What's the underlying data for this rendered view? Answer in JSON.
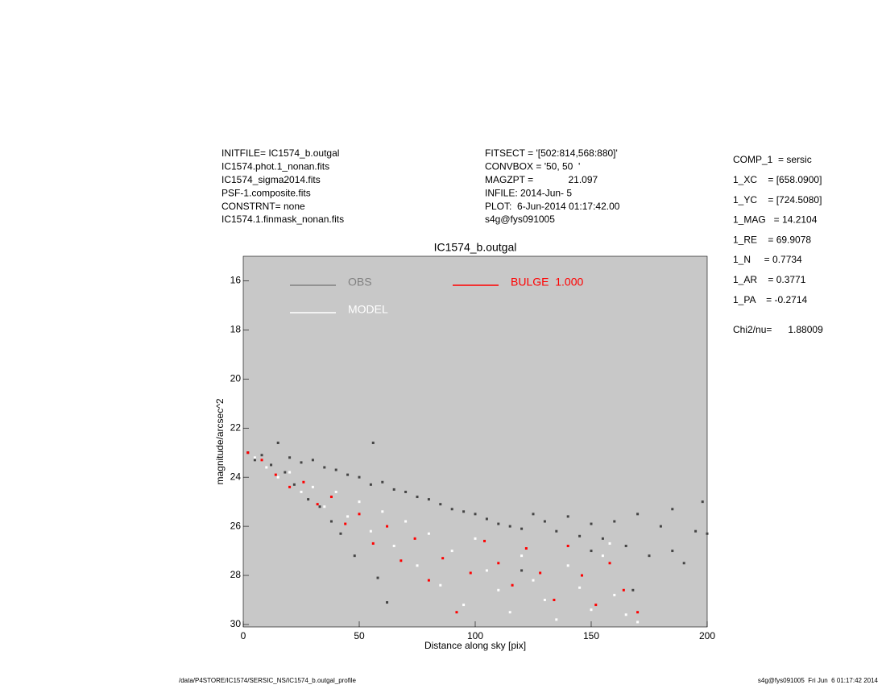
{
  "header_left": [
    "INITFILE= IC1574_b.outgal",
    "IC1574.phot.1_nonan.fits",
    "IC1574_sigma2014.fits",
    "PSF-1.composite.fits",
    "CONSTRNT= none",
    "IC1574.1.finmask_nonan.fits"
  ],
  "header_middle": [
    "FITSECT = '[502:814,568:880]'",
    "CONVBOX = '50, 50  '",
    "MAGZPT =             21.097",
    "INFILE: 2014-Jun- 5",
    "PLOT:  6-Jun-2014 01:17:42.00",
    "s4g@fys091005"
  ],
  "params": [
    "COMP_1  = sersic",
    "1_XC    = [658.0900]",
    "1_YC    = [724.5080]",
    "1_MAG   = 14.2104",
    "1_RE    = 69.9078",
    "1_N     = 0.7734",
    "1_AR    = 0.3771",
    "1_PA    = -0.2714"
  ],
  "chi2": "Chi2/nu=      1.88009",
  "footer_left": "/data/P4STORE/IC1574/SERSIC_NS/IC1574_b.outgal_profile",
  "footer_right": "s4g@fys091005  Fri Jun  6 01:17:42 2014",
  "chart_data": {
    "type": "scatter",
    "title": "IC1574_b.outgal",
    "x_label": "Distance along sky [pix]",
    "y_label": "magnitude/arcsec^2",
    "xlim": [
      0,
      200
    ],
    "xticks": [
      0,
      50,
      100,
      150,
      200
    ],
    "ylim": [
      30.1,
      15
    ],
    "yticks": [
      16,
      18,
      20,
      22,
      24,
      26,
      28,
      30
    ],
    "background": "#c8c8c8",
    "series": [
      {
        "name": "OBS",
        "color": "#444444",
        "legend_color": "#808080",
        "x": [
          2,
          5,
          8,
          12,
          15,
          18,
          20,
          22,
          25,
          28,
          30,
          33,
          35,
          38,
          40,
          42,
          45,
          48,
          50,
          55,
          56,
          58,
          60,
          65,
          70,
          75,
          80,
          85,
          90,
          95,
          100,
          105,
          110,
          115,
          120,
          125,
          130,
          135,
          140,
          145,
          150,
          155,
          160,
          165,
          170,
          175,
          180,
          185,
          190,
          195,
          198,
          168,
          62,
          120,
          150,
          185,
          200
        ],
        "values": [
          23.0,
          23.3,
          23.1,
          23.5,
          22.6,
          23.8,
          23.2,
          24.3,
          23.4,
          24.9,
          23.3,
          25.2,
          23.6,
          25.8,
          23.7,
          26.3,
          23.9,
          27.2,
          24.0,
          24.3,
          22.6,
          28.1,
          24.2,
          24.5,
          24.6,
          24.8,
          24.9,
          25.1,
          25.3,
          25.4,
          25.5,
          25.7,
          25.9,
          26.0,
          26.1,
          25.5,
          25.8,
          26.2,
          25.6,
          26.4,
          25.9,
          26.5,
          25.8,
          26.8,
          25.5,
          27.2,
          26.0,
          25.3,
          27.5,
          26.2,
          25.0,
          28.6,
          29.1,
          27.8,
          27.0,
          27.0,
          26.3
        ]
      },
      {
        "name": "MODEL",
        "color": "#ffffff",
        "legend_color": "#ffffff",
        "x": [
          5,
          10,
          15,
          20,
          25,
          30,
          35,
          40,
          45,
          50,
          55,
          60,
          65,
          70,
          75,
          80,
          85,
          90,
          95,
          100,
          105,
          110,
          115,
          120,
          125,
          130,
          135,
          140,
          145,
          150,
          155,
          160,
          165,
          170,
          158
        ],
        "values": [
          23.2,
          23.6,
          24.0,
          23.8,
          24.6,
          24.4,
          25.2,
          24.6,
          25.6,
          25.0,
          26.2,
          25.4,
          26.8,
          25.8,
          27.6,
          26.3,
          28.4,
          27.0,
          29.2,
          26.5,
          27.8,
          28.6,
          29.5,
          27.2,
          28.2,
          29.0,
          29.8,
          27.6,
          28.5,
          29.4,
          27.2,
          28.8,
          29.6,
          29.9,
          26.7
        ]
      },
      {
        "name": "BULGE  1.000",
        "color": "#ff0000",
        "legend_color": "#ff0000",
        "x": [
          2,
          8,
          14,
          20,
          26,
          32,
          38,
          44,
          50,
          56,
          62,
          68,
          74,
          80,
          86,
          92,
          98,
          104,
          110,
          116,
          122,
          128,
          134,
          140,
          146,
          152,
          158,
          164,
          170
        ],
        "values": [
          23.0,
          23.3,
          23.9,
          24.4,
          24.2,
          25.1,
          24.8,
          25.9,
          25.5,
          26.7,
          26.0,
          27.4,
          26.5,
          28.2,
          27.3,
          29.5,
          27.9,
          26.6,
          27.5,
          28.4,
          26.9,
          27.9,
          29.0,
          26.8,
          28.0,
          29.2,
          27.5,
          28.6,
          29.5
        ]
      }
    ]
  }
}
